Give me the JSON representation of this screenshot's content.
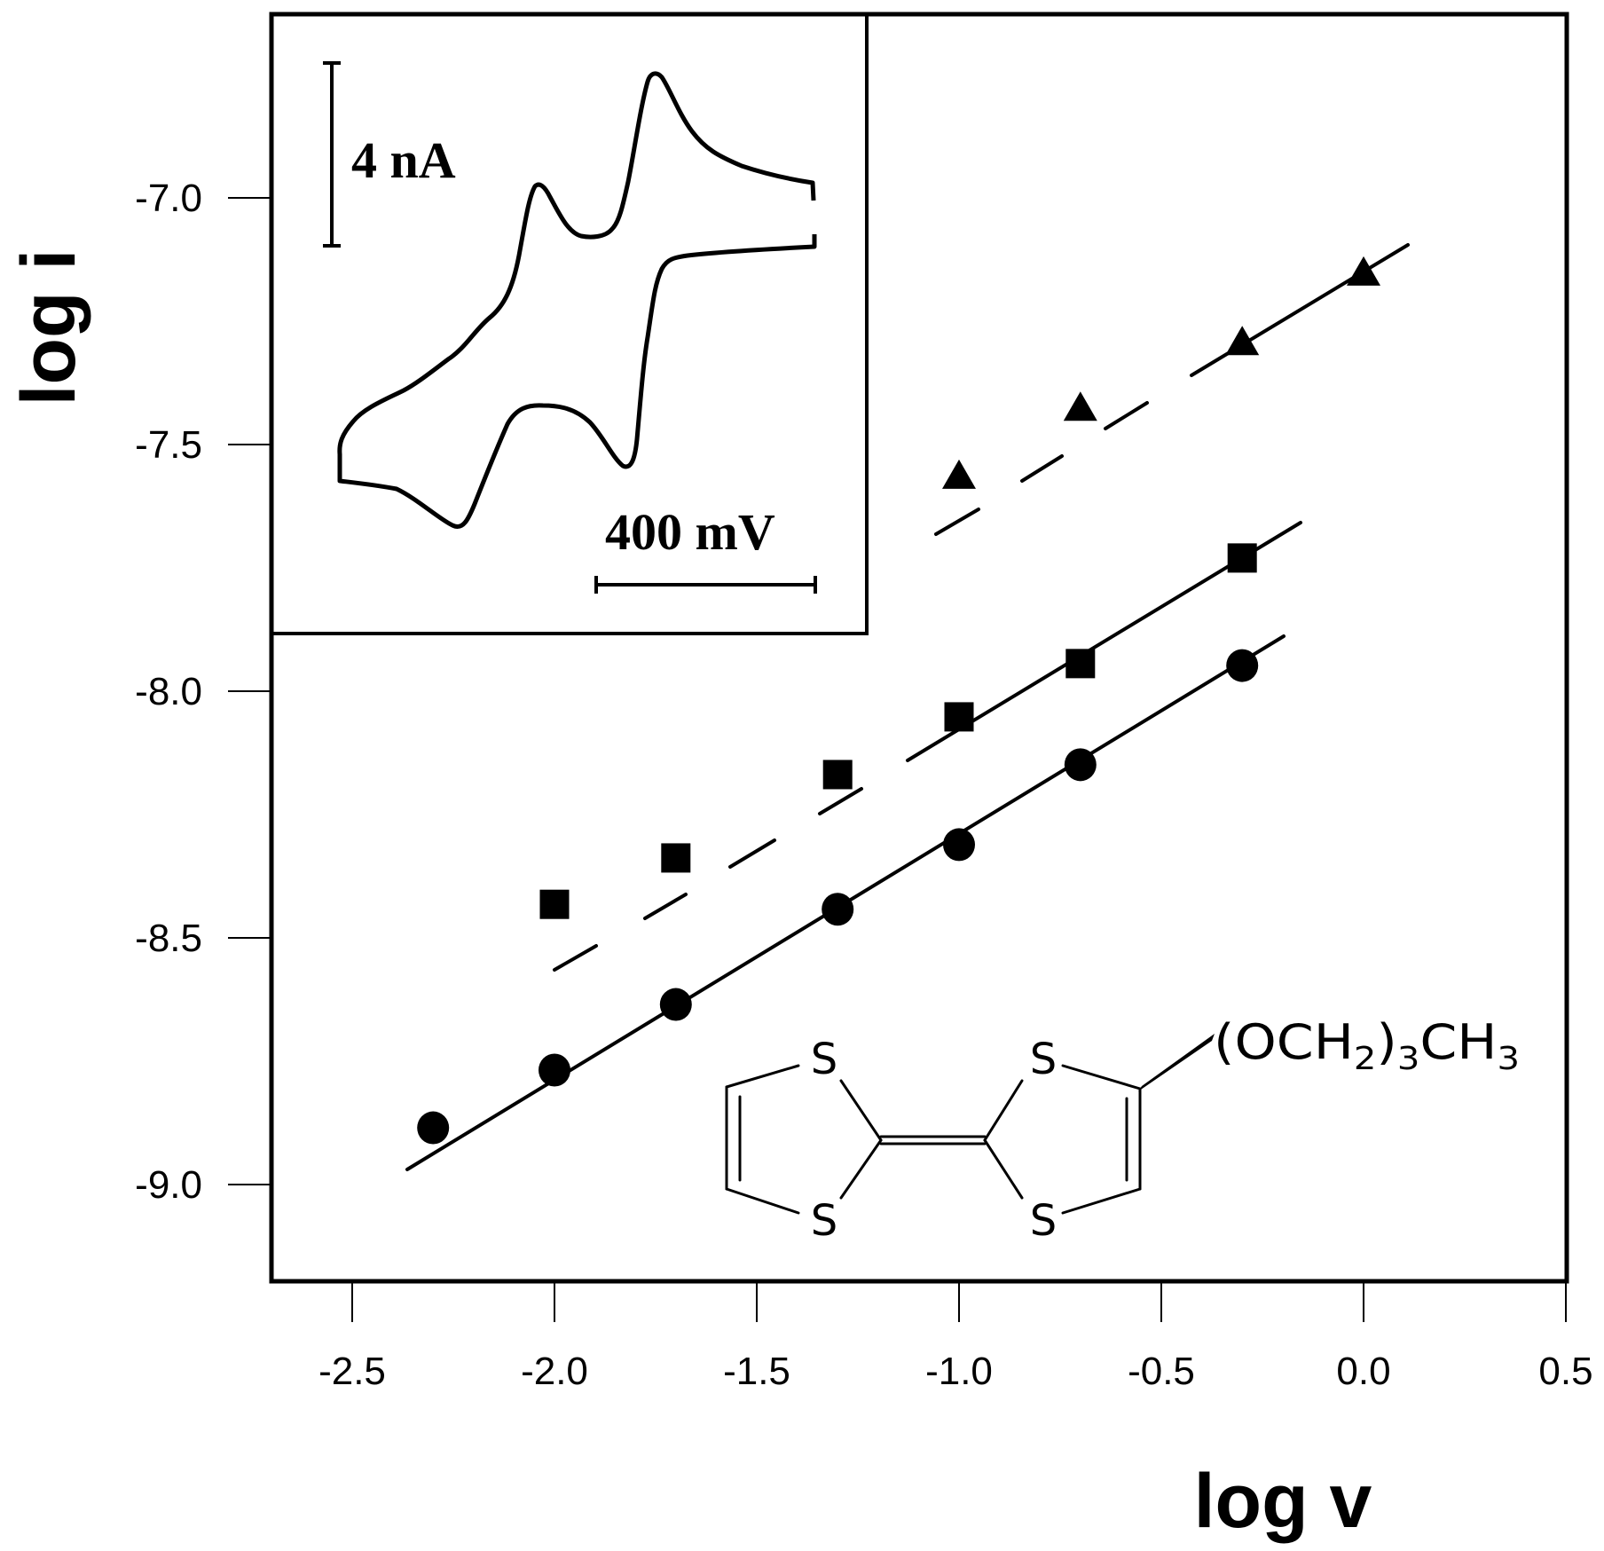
{
  "chart_data": {
    "type": "scatter",
    "title": "",
    "xlabel": "log v",
    "ylabel": "log i",
    "xlim": [
      -2.7,
      0.5
    ],
    "ylim": [
      -9.2,
      -6.64
    ],
    "x_ticks": [
      "-2.5",
      "-2.0",
      "-1.5",
      "-1.0",
      "-0.5",
      "0.0",
      "0.5"
    ],
    "y_ticks": [
      "-7.0",
      "-7.5",
      "-8.0",
      "-8.5",
      "-9.0"
    ],
    "grid": false,
    "legend": null,
    "series": [
      {
        "name": "circles",
        "marker": "circle",
        "x": [
          -2.3,
          -2.0,
          -1.7,
          -1.3,
          -1.0,
          -0.7,
          -0.3
        ],
        "y": [
          -8.885,
          -8.768,
          -8.635,
          -8.442,
          -8.311,
          -8.149,
          -7.948
        ],
        "fit_line": {
          "style": "solid",
          "x": [
            -2.364,
            -0.19
          ],
          "y": [
            -8.97,
            -7.887
          ]
        }
      },
      {
        "name": "squares",
        "marker": "square",
        "x": [
          -2.0,
          -1.7,
          -1.3,
          -1.0,
          -0.7,
          -0.3
        ],
        "y": [
          -8.432,
          -8.338,
          -8.169,
          -8.052,
          -7.944,
          -7.73
        ],
        "fit_line": {
          "style": "dashed-then-solid",
          "dashed_x": [
            -2.004,
            -1.093
          ],
          "solid_x": [
            -1.093,
            -0.175
          ],
          "x": [
            -2.004,
            -0.175
          ],
          "y": [
            -8.566,
            -7.659
          ]
        }
      },
      {
        "name": "triangles",
        "marker": "triangle",
        "x": [
          -1.0,
          -0.7,
          -0.3,
          0.0
        ],
        "y": [
          -7.561,
          -7.423,
          -7.29,
          -7.149
        ],
        "fit_line": {
          "style": "dashed-then-solid",
          "dashed_x": [
            -1.059,
            -0.431
          ],
          "solid_x": [
            -0.431,
            0.109
          ],
          "x": [
            -1.059,
            0.109
          ],
          "y": [
            -7.681,
            -7.097
          ]
        }
      }
    ],
    "annotations": [
      "Inset: cyclic voltammogram with two reversible redox waves",
      "Inset scale bars: 4 nA (vertical), 400 mV (horizontal)",
      "Structure: tetrathiafulvalene with (OCH2)3CH3 substituent"
    ]
  },
  "axes": {
    "xlabel": "log v",
    "ylabel": "log i",
    "x_ticks": [
      "-2.5",
      "-2.0",
      "-1.5",
      "-1.0",
      "-0.5",
      "0.0",
      "0.5"
    ],
    "y_ticks": [
      "-7.0",
      "-7.5",
      "-8.0",
      "-8.5",
      "-9.0"
    ]
  },
  "inset": {
    "current_scale": "4 nA",
    "potential_scale": "400 mV"
  },
  "molecule": {
    "atoms": [
      "S",
      "S",
      "S",
      "S"
    ],
    "substituent_main": "(OCH",
    "sub1": "2",
    "mid": ")",
    "sub2": "3",
    "tail": "CH",
    "sub3": "3"
  },
  "style": {
    "ink": "#000000",
    "background": "#ffffff"
  }
}
